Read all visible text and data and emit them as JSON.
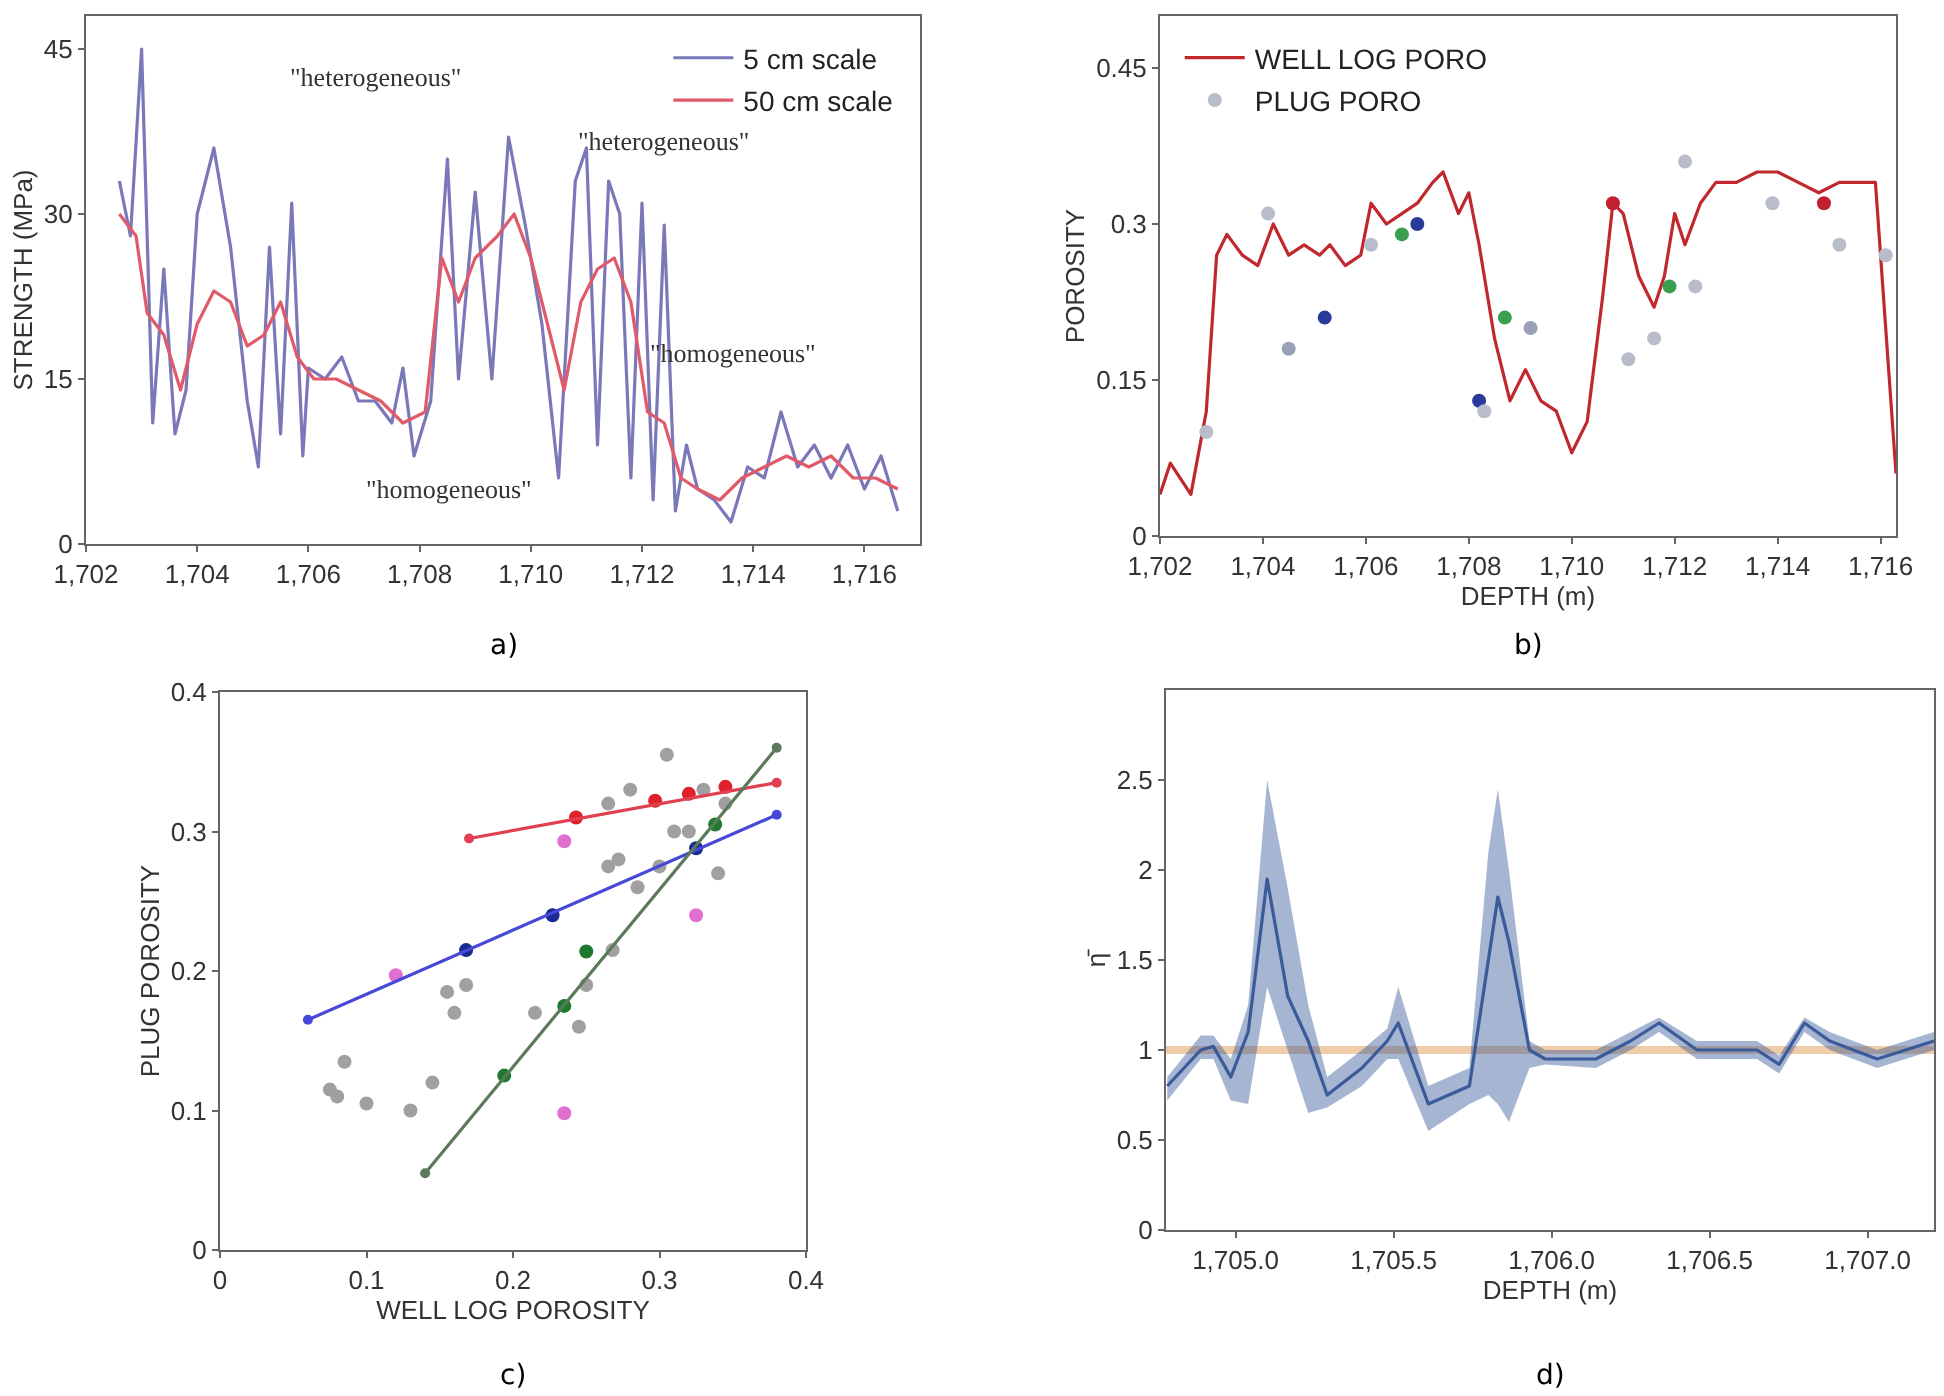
{
  "chart_data": [
    {
      "type": "line",
      "ylabel": "STRENGTH (MPa)",
      "xlim": [
        1702,
        1717
      ],
      "ylim": [
        0,
        48
      ],
      "xticks": [
        {
          "value": 1702,
          "label": "1,702"
        },
        {
          "value": 1704,
          "label": "1,704"
        },
        {
          "value": 1706,
          "label": "1,706"
        },
        {
          "value": 1708,
          "label": "1,708"
        },
        {
          "value": 1710,
          "label": "1,710"
        },
        {
          "value": 1712,
          "label": "1,712"
        },
        {
          "value": 1714,
          "label": "1,714"
        },
        {
          "value": 1716,
          "label": "1,716"
        }
      ],
      "yticks": [
        0,
        15,
        30,
        45
      ],
      "grid": false,
      "legend": "top right",
      "marker": "none",
      "series": [
        {
          "name": "5 cm scale",
          "color": "#7a78b8",
          "x": [
            1702.6,
            1702.8,
            1703.0,
            1703.2,
            1703.4,
            1703.6,
            1703.8,
            1704.0,
            1704.3,
            1704.6,
            1704.9,
            1705.1,
            1705.3,
            1705.5,
            1705.7,
            1705.9,
            1706.0,
            1706.3,
            1706.6,
            1706.9,
            1707.2,
            1707.5,
            1707.7,
            1707.9,
            1708.2,
            1708.5,
            1708.7,
            1709.0,
            1709.3,
            1709.6,
            1709.9,
            1710.2,
            1710.5,
            1710.8,
            1711.0,
            1711.2,
            1711.4,
            1711.6,
            1711.8,
            1712.0,
            1712.2,
            1712.4,
            1712.6,
            1712.8,
            1713.0,
            1713.3,
            1713.6,
            1713.9,
            1714.2,
            1714.5,
            1714.8,
            1715.1,
            1715.4,
            1715.7,
            1716.0,
            1716.3,
            1716.6
          ],
          "values": [
            33,
            28,
            45,
            11,
            25,
            10,
            14,
            30,
            36,
            27,
            13,
            7,
            27,
            10,
            31,
            8,
            16,
            15,
            17,
            13,
            13,
            11,
            16,
            8,
            13,
            35,
            15,
            32,
            15,
            37,
            29,
            20,
            6,
            33,
            36,
            9,
            33,
            30,
            6,
            31,
            4,
            29,
            3,
            9,
            5,
            4,
            2,
            7,
            6,
            12,
            7,
            9,
            6,
            9,
            5,
            8,
            3
          ]
        },
        {
          "name": "50 cm scale",
          "color": "#e05a6a",
          "x": [
            1702.6,
            1702.9,
            1703.1,
            1703.4,
            1703.7,
            1704.0,
            1704.3,
            1704.6,
            1704.9,
            1705.2,
            1705.5,
            1705.8,
            1706.1,
            1706.5,
            1706.9,
            1707.3,
            1707.7,
            1708.1,
            1708.4,
            1708.7,
            1709.0,
            1709.4,
            1709.7,
            1710.0,
            1710.3,
            1710.6,
            1710.9,
            1711.2,
            1711.5,
            1711.8,
            1712.1,
            1712.4,
            1712.7,
            1713.0,
            1713.4,
            1713.8,
            1714.2,
            1714.6,
            1715.0,
            1715.4,
            1715.8,
            1716.2,
            1716.6
          ],
          "values": [
            30,
            28,
            21,
            19,
            14,
            20,
            23,
            22,
            18,
            19,
            22,
            17,
            15,
            15,
            14,
            13,
            11,
            12,
            26,
            22,
            26,
            28,
            30,
            26,
            20,
            14,
            22,
            25,
            26,
            22,
            12,
            11,
            6,
            5,
            4,
            6,
            7,
            8,
            7,
            8,
            6,
            6,
            5
          ]
        }
      ],
      "annotations": [
        "\"heterogeneous\"",
        "\"heterogeneous\"",
        "\"homogeneous\"",
        "\"homogeneous\"",
        "a)"
      ]
    },
    {
      "type": "line",
      "xlabel": "DEPTH (m)",
      "ylabel": "POROSITY",
      "xlim": [
        1702,
        1716.3
      ],
      "ylim": [
        0,
        0.5
      ],
      "xticks": [
        {
          "value": 1702,
          "label": "1,702"
        },
        {
          "value": 1704,
          "label": "1,704"
        },
        {
          "value": 1706,
          "label": "1,706"
        },
        {
          "value": 1708,
          "label": "1,708"
        },
        {
          "value": 1710,
          "label": "1,710"
        },
        {
          "value": 1712,
          "label": "1,712"
        },
        {
          "value": 1714,
          "label": "1,714"
        },
        {
          "value": 1716,
          "label": "1,716"
        }
      ],
      "yticks": [
        0,
        0.15,
        0.3,
        0.45
      ],
      "grid": false,
      "legend": "top left",
      "series": [
        {
          "name": "WELL LOG PORO",
          "color": "#c0282d",
          "x": [
            1702.0,
            1702.2,
            1702.6,
            1702.9,
            1703.1,
            1703.3,
            1703.6,
            1703.9,
            1704.2,
            1704.5,
            1704.8,
            1705.1,
            1705.3,
            1705.6,
            1705.9,
            1706.1,
            1706.4,
            1706.7,
            1707.0,
            1707.3,
            1707.5,
            1707.8,
            1708.0,
            1708.2,
            1708.5,
            1708.8,
            1709.1,
            1709.4,
            1709.7,
            1710.0,
            1710.3,
            1710.6,
            1710.8,
            1711.0,
            1711.3,
            1711.6,
            1711.8,
            1712.0,
            1712.2,
            1712.5,
            1712.8,
            1713.2,
            1713.6,
            1714.0,
            1714.4,
            1714.8,
            1715.2,
            1715.6,
            1715.9,
            1716.1,
            1716.3
          ],
          "values": [
            0.04,
            0.07,
            0.04,
            0.12,
            0.27,
            0.29,
            0.27,
            0.26,
            0.3,
            0.27,
            0.28,
            0.27,
            0.28,
            0.26,
            0.27,
            0.32,
            0.3,
            0.31,
            0.32,
            0.34,
            0.35,
            0.31,
            0.33,
            0.28,
            0.19,
            0.13,
            0.16,
            0.13,
            0.12,
            0.08,
            0.11,
            0.23,
            0.32,
            0.31,
            0.25,
            0.22,
            0.25,
            0.31,
            0.28,
            0.32,
            0.34,
            0.34,
            0.35,
            0.35,
            0.34,
            0.33,
            0.34,
            0.34,
            0.34,
            0.2,
            0.06
          ]
        },
        {
          "name": "PLUG PORO",
          "type": "scatter",
          "x": [
            1702.9,
            1704.1,
            1704.5,
            1705.2,
            1706.1,
            1706.7,
            1707.0,
            1708.2,
            1708.3,
            1708.7,
            1709.2,
            1710.8,
            1711.1,
            1711.6,
            1711.9,
            1712.2,
            1712.4,
            1713.9,
            1714.9,
            1715.2,
            1716.1
          ],
          "values": [
            0.1,
            0.31,
            0.18,
            0.21,
            0.28,
            0.29,
            0.3,
            0.13,
            0.12,
            0.21,
            0.2,
            0.32,
            0.17,
            0.19,
            0.24,
            0.36,
            0.24,
            0.32,
            0.32,
            0.28,
            0.27
          ],
          "colors": [
            "#b8bccb",
            "#b8bccb",
            "#9aa0b8",
            "#2a3a9a",
            "#b8bccb",
            "#3aa050",
            "#2a3a9a",
            "#2a3a9a",
            "#b8bccb",
            "#3aa050",
            "#9aa0b8",
            "#c02030",
            "#b8bccb",
            "#b8bccb",
            "#3aa050",
            "#b8bccb",
            "#b8bccb",
            "#b8bccb",
            "#c02030",
            "#b8bccb",
            "#b8bccb"
          ]
        }
      ],
      "annotations": [
        "b)"
      ]
    },
    {
      "type": "scatter",
      "xlabel": "WELL LOG POROSITY",
      "ylabel": "PLUG POROSITY",
      "xlim": [
        0,
        0.4
      ],
      "ylim": [
        0,
        0.4
      ],
      "xticks": [
        0,
        0.1,
        0.2,
        0.3,
        0.4
      ],
      "yticks": [
        0,
        0.1,
        0.2,
        0.3,
        0.4
      ],
      "grid": false,
      "marker": "circle",
      "series": [
        {
          "color": "#a0a0a0",
          "x": [
            0.075,
            0.08,
            0.085,
            0.1,
            0.13,
            0.145,
            0.155,
            0.16,
            0.168,
            0.215,
            0.245,
            0.25,
            0.268,
            0.265,
            0.272,
            0.285,
            0.28,
            0.265,
            0.305,
            0.3,
            0.32,
            0.31,
            0.34,
            0.345,
            0.33
          ],
          "values": [
            0.115,
            0.11,
            0.135,
            0.105,
            0.1,
            0.12,
            0.185,
            0.17,
            0.19,
            0.17,
            0.16,
            0.19,
            0.215,
            0.275,
            0.28,
            0.26,
            0.33,
            0.32,
            0.355,
            0.275,
            0.3,
            0.3,
            0.27,
            0.32,
            0.33
          ]
        },
        {
          "color": "#e0202a",
          "x": [
            0.243,
            0.297,
            0.32,
            0.345
          ],
          "values": [
            0.31,
            0.322,
            0.327,
            0.332
          ]
        },
        {
          "color": "#1a2a90",
          "x": [
            0.168,
            0.227,
            0.325
          ],
          "values": [
            0.215,
            0.24,
            0.288
          ]
        },
        {
          "color": "#1e7a2e",
          "x": [
            0.194,
            0.235,
            0.25,
            0.338
          ],
          "values": [
            0.125,
            0.175,
            0.214,
            0.305
          ]
        },
        {
          "color": "#e070d0",
          "x": [
            0.12,
            0.235,
            0.235,
            0.325
          ],
          "values": [
            0.197,
            0.293,
            0.098,
            0.24
          ]
        },
        {
          "type": "line",
          "color": "#e04050",
          "x": [
            0.17,
            0.38
          ],
          "values": [
            0.295,
            0.335
          ]
        },
        {
          "type": "line",
          "color": "#4848d8",
          "x": [
            0.06,
            0.38
          ],
          "values": [
            0.165,
            0.312
          ]
        },
        {
          "type": "line",
          "color": "#5a7a5a",
          "x": [
            0.14,
            0.38
          ],
          "values": [
            0.055,
            0.36
          ]
        }
      ],
      "annotations": [
        "c)"
      ]
    },
    {
      "type": "line",
      "xlabel": "DEPTH (m)",
      "ylabel": "η̄",
      "xlim": [
        1704.78,
        1707.21
      ],
      "ylim": [
        0,
        3
      ],
      "xticks": [
        {
          "value": 1705,
          "label": "1,705.0"
        },
        {
          "value": 1705.5,
          "label": "1,705.5"
        },
        {
          "value": 1706,
          "label": "1,706.0"
        },
        {
          "value": 1706.5,
          "label": "1,706.5"
        },
        {
          "value": 1707,
          "label": "1,707.0"
        }
      ],
      "yticks": [
        0,
        0.5,
        1,
        1.5,
        2,
        2.5
      ],
      "grid": false,
      "marker": "none",
      "ref_lines": [
        {
          "axis": "y",
          "value": 1,
          "color": "#f0cca8"
        }
      ],
      "series": [
        {
          "color": "#3a5a9a",
          "x": [
            1704.784,
            1704.89,
            1704.93,
            1704.985,
            1705.04,
            1705.1,
            1705.165,
            1705.23,
            1705.29,
            1705.4,
            1705.48,
            1705.515,
            1705.61,
            1705.74,
            1705.8,
            1705.83,
            1705.865,
            1705.93,
            1705.98,
            1706.14,
            1706.25,
            1706.34,
            1706.46,
            1706.65,
            1706.72,
            1706.8,
            1706.88,
            1707.03,
            1707.12,
            1707.21
          ],
          "values": [
            0.8,
            1.0,
            1.02,
            0.85,
            1.1,
            1.95,
            1.3,
            1.05,
            0.75,
            0.9,
            1.05,
            1.15,
            0.7,
            0.8,
            1.5,
            1.85,
            1.6,
            1.0,
            0.95,
            0.95,
            1.05,
            1.15,
            1.0,
            1.0,
            0.92,
            1.15,
            1.05,
            0.95,
            1.0,
            1.05
          ],
          "upper": [
            0.85,
            1.08,
            1.08,
            0.95,
            1.25,
            2.5,
            1.9,
            1.25,
            0.85,
            1.0,
            1.12,
            1.35,
            0.8,
            0.9,
            2.1,
            2.45,
            2.0,
            1.05,
            1.0,
            1.0,
            1.1,
            1.18,
            1.05,
            1.05,
            0.97,
            1.18,
            1.1,
            1.0,
            1.05,
            1.1
          ],
          "lower": [
            0.72,
            0.95,
            0.95,
            0.72,
            0.7,
            1.35,
            1.0,
            0.65,
            0.68,
            0.8,
            0.95,
            0.95,
            0.55,
            0.7,
            0.75,
            0.7,
            0.6,
            0.9,
            0.92,
            0.9,
            1.0,
            1.1,
            0.95,
            0.95,
            0.87,
            1.1,
            1.0,
            0.9,
            0.95,
            1.0
          ]
        }
      ],
      "annotations": [
        "d)"
      ]
    }
  ]
}
